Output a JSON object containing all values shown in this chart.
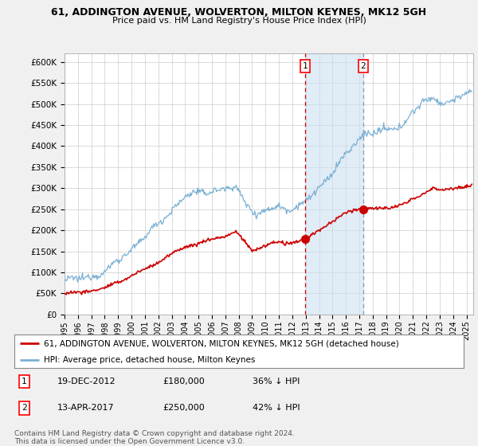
{
  "title1": "61, ADDINGTON AVENUE, WOLVERTON, MILTON KEYNES, MK12 5GH",
  "title2": "Price paid vs. HM Land Registry's House Price Index (HPI)",
  "ylabel_ticks": [
    "£0",
    "£50K",
    "£100K",
    "£150K",
    "£200K",
    "£250K",
    "£300K",
    "£350K",
    "£400K",
    "£450K",
    "£500K",
    "£550K",
    "£600K"
  ],
  "ytick_vals": [
    0,
    50000,
    100000,
    150000,
    200000,
    250000,
    300000,
    350000,
    400000,
    450000,
    500000,
    550000,
    600000
  ],
  "ylim": [
    0,
    620000
  ],
  "xlim_start": 1995.0,
  "xlim_end": 2025.5,
  "hpi_color": "#7ab0d4",
  "price_color": "#cc0000",
  "bg_color": "#f0f0f0",
  "plot_bg": "#ffffff",
  "grid_color": "#cccccc",
  "transaction1_date": 2012.97,
  "transaction1_price": 180000,
  "transaction2_date": 2017.28,
  "transaction2_price": 250000,
  "legend_line1": "61, ADDINGTON AVENUE, WOLVERTON, MILTON KEYNES, MK12 5GH (detached house)",
  "legend_line2": "HPI: Average price, detached house, Milton Keynes",
  "annotation1_label": "1",
  "annotation1_date": "19-DEC-2012",
  "annotation1_price": "£180,000",
  "annotation1_pct": "36% ↓ HPI",
  "annotation2_label": "2",
  "annotation2_date": "13-APR-2017",
  "annotation2_price": "£250,000",
  "annotation2_pct": "42% ↓ HPI",
  "footnote1": "Contains HM Land Registry data © Crown copyright and database right 2024.",
  "footnote2": "This data is licensed under the Open Government Licence v3.0."
}
